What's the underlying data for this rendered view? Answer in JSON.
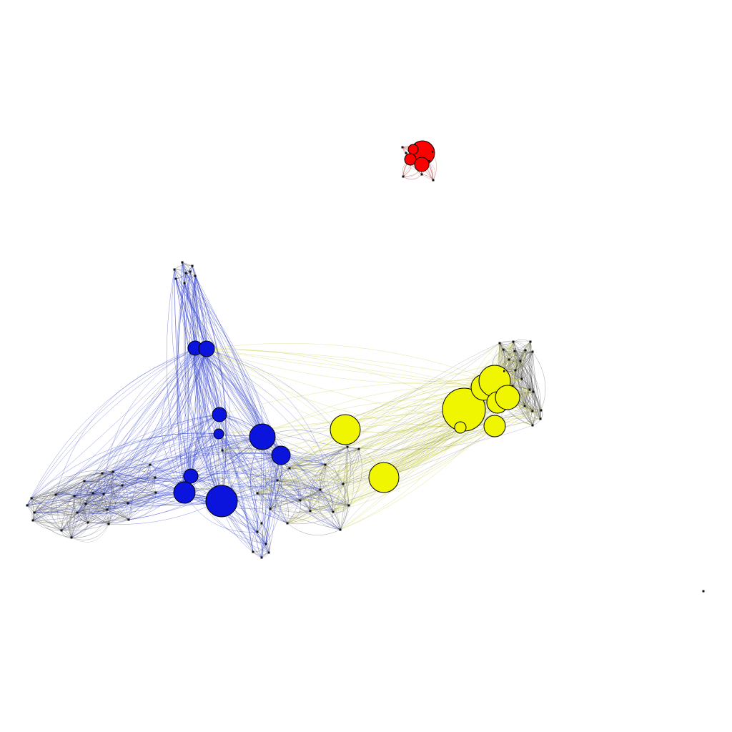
{
  "diagram": {
    "type": "network-graph",
    "colors": {
      "red": "#ff0000",
      "blue": "#0a14dc",
      "yellow": "#f0f500",
      "minor_node": "#111111",
      "edge_gray": "#555555",
      "edge_blue": "#3040c8",
      "edge_yellow": "#c8cc40",
      "edge_red": "#b05050",
      "outline": "#000000"
    },
    "communities": [
      {
        "id": "red",
        "color_key": "red",
        "edge_color_key": "edge_red",
        "node_count": 12
      },
      {
        "id": "blue",
        "color_key": "blue",
        "edge_color_key": "edge_blue",
        "node_count": 9
      },
      {
        "id": "yellow",
        "color_key": "yellow",
        "edge_color_key": "edge_yellow",
        "node_count": 10
      },
      {
        "id": "gray-left",
        "color_key": "minor_node",
        "edge_color_key": "edge_gray",
        "node_count": 24
      },
      {
        "id": "gray-top",
        "color_key": "minor_node",
        "edge_color_key": "edge_gray",
        "node_count": 8
      },
      {
        "id": "gray-bottom",
        "color_key": "minor_node",
        "edge_color_key": "edge_gray",
        "node_count": 6
      },
      {
        "id": "gray-center",
        "color_key": "minor_node",
        "edge_color_key": "edge_gray",
        "node_count": 16
      },
      {
        "id": "gray-right",
        "color_key": "minor_node",
        "edge_color_key": "edge_gray",
        "node_count": 22
      },
      {
        "id": "isolate",
        "color_key": "minor_node",
        "edge_color_key": "edge_gray",
        "node_count": 1
      }
    ]
  }
}
